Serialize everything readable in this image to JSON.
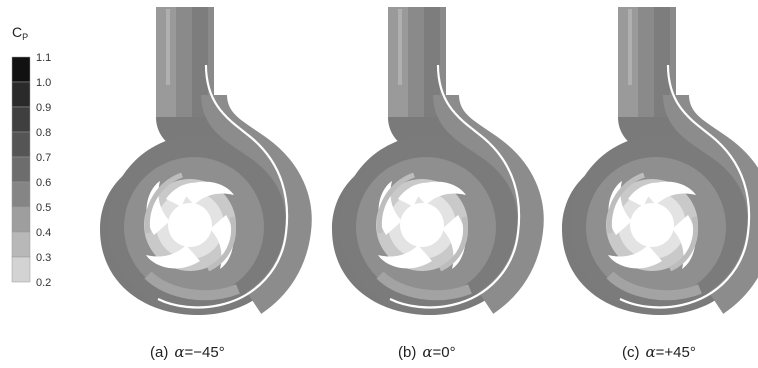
{
  "legend": {
    "title_main": "C",
    "title_sub": "P",
    "ticks": [
      "1.1",
      "1.0",
      "0.9",
      "0.8",
      "0.7",
      "0.6",
      "0.5",
      "0.4",
      "0.3",
      "0.2"
    ],
    "colors": [
      "#111111",
      "#2a2a2a",
      "#3f3f3f",
      "#555555",
      "#6d6d6d",
      "#858585",
      "#9e9e9e",
      "#b8b8b8",
      "#d3d3d3",
      "#eeeeee"
    ]
  },
  "panels": [
    {
      "label_prefix": "(a)",
      "symbol": "α",
      "equals": "=",
      "value": "−45°"
    },
    {
      "label_prefix": "(b)",
      "symbol": "α",
      "equals": "=",
      "value": "0°"
    },
    {
      "label_prefix": "(c)",
      "symbol": "α",
      "equals": "=",
      "value": "+45°"
    }
  ]
}
